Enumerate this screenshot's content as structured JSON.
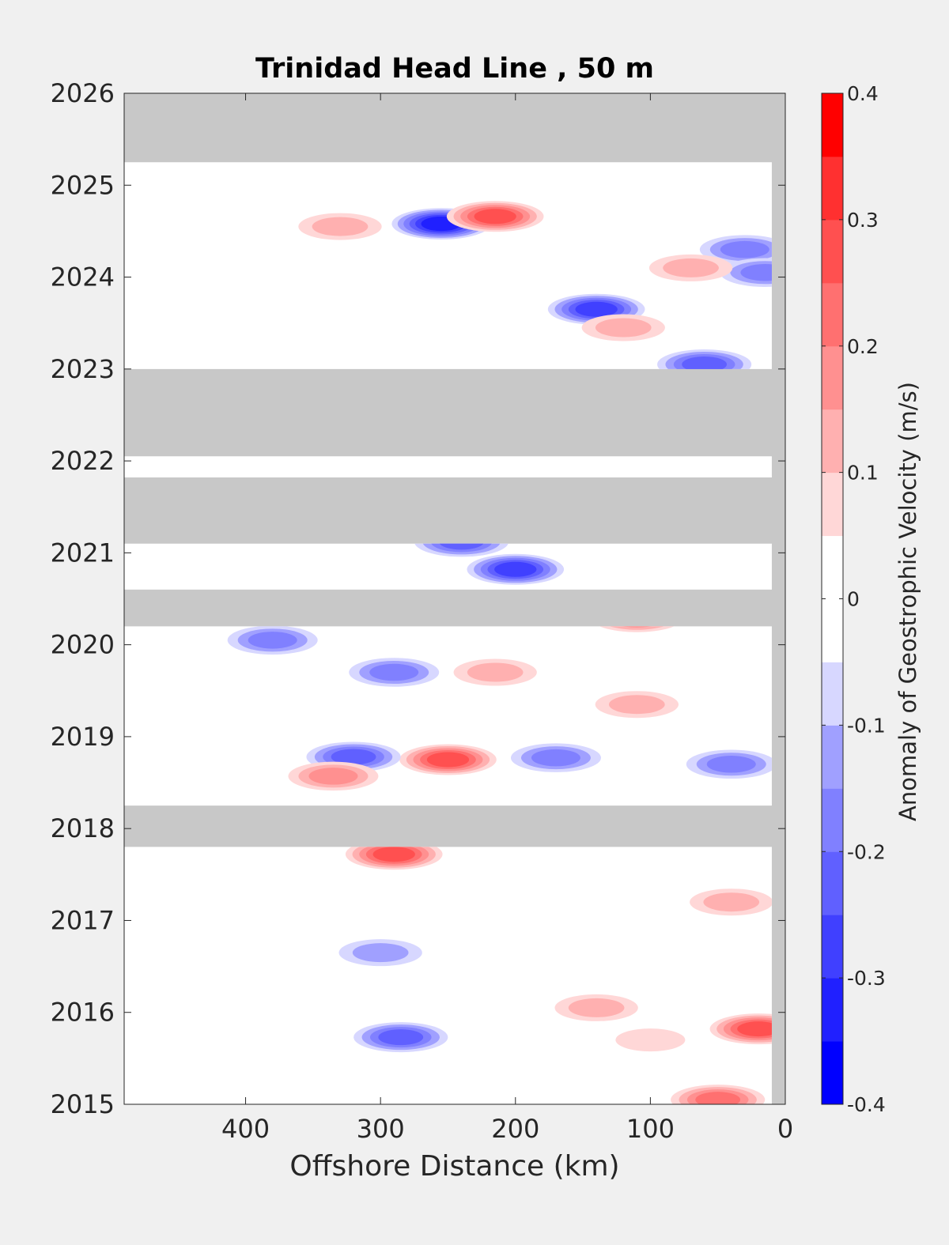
{
  "chart_data": {
    "type": "heatmap",
    "title": "Trinidad Head Line , 50 m",
    "xlabel": "Offshore Distance (km)",
    "ylabel": "",
    "xlim": [
      490,
      0
    ],
    "ylim": [
      2015,
      2026
    ],
    "x_ticks": [
      400,
      300,
      200,
      100,
      0
    ],
    "y_ticks": [
      2015,
      2016,
      2017,
      2018,
      2019,
      2020,
      2021,
      2022,
      2023,
      2024,
      2025,
      2026
    ],
    "colorbar": {
      "label": "Anomaly of Geostrophic Velocity (m/s)",
      "limits": [
        -0.4,
        0.4
      ],
      "ticks": [
        "0.4",
        "0.3",
        "0.2",
        "0.1",
        "0",
        "-0.1",
        "-0.2",
        "-0.3",
        "-0.4"
      ],
      "levels": [
        {
          "from": -0.4,
          "to": -0.35,
          "color": "#0000ff"
        },
        {
          "from": -0.35,
          "to": -0.3,
          "color": "#2020ff"
        },
        {
          "from": -0.3,
          "to": -0.25,
          "color": "#4040ff"
        },
        {
          "from": -0.25,
          "to": -0.2,
          "color": "#6060ff"
        },
        {
          "from": -0.2,
          "to": -0.15,
          "color": "#8080ff"
        },
        {
          "from": -0.15,
          "to": -0.1,
          "color": "#a0a0ff"
        },
        {
          "from": -0.1,
          "to": -0.05,
          "color": "#d7d7ff"
        },
        {
          "from": -0.05,
          "to": 0,
          "color": "#ffffff"
        },
        {
          "from": 0,
          "to": 0.05,
          "color": "#ffffff"
        },
        {
          "from": 0.05,
          "to": 0.1,
          "color": "#ffd7d7"
        },
        {
          "from": 0.1,
          "to": 0.15,
          "color": "#ffb0b0"
        },
        {
          "from": 0.15,
          "to": 0.2,
          "color": "#ff9090"
        },
        {
          "from": 0.2,
          "to": 0.25,
          "color": "#ff7070"
        },
        {
          "from": 0.25,
          "to": 0.3,
          "color": "#ff5050"
        },
        {
          "from": 0.3,
          "to": 0.35,
          "color": "#ff3030"
        },
        {
          "from": 0.35,
          "to": 0.4,
          "color": "#ff0000"
        }
      ]
    },
    "missing_color": "#c8c8c8",
    "grid": false,
    "features": [
      {
        "x": 140,
        "y": 2023.65,
        "value": -0.3
      },
      {
        "x": 200,
        "y": 2020.82,
        "value": -0.3
      },
      {
        "x": 255,
        "y": 2024.58,
        "value": -0.35
      },
      {
        "x": 215,
        "y": 2024.66,
        "value": 0.3
      },
      {
        "x": 250,
        "y": 2018.75,
        "value": 0.3
      },
      {
        "x": 170,
        "y": 2018.77,
        "value": -0.2
      },
      {
        "x": 320,
        "y": 2018.78,
        "value": -0.25
      },
      {
        "x": 335,
        "y": 2018.57,
        "value": 0.2
      },
      {
        "x": 20,
        "y": 2015.82,
        "value": 0.3
      },
      {
        "x": 290,
        "y": 2017.72,
        "value": 0.3
      },
      {
        "x": 285,
        "y": 2015.73,
        "value": -0.25
      },
      {
        "x": 40,
        "y": 2018.7,
        "value": -0.2
      },
      {
        "x": 30,
        "y": 2024.3,
        "value": -0.2
      },
      {
        "x": 15,
        "y": 2024.05,
        "value": -0.2
      },
      {
        "x": 60,
        "y": 2023.05,
        "value": -0.25
      },
      {
        "x": 120,
        "y": 2023.45,
        "value": 0.15
      },
      {
        "x": 110,
        "y": 2020.3,
        "value": 0.25
      },
      {
        "x": 380,
        "y": 2020.05,
        "value": -0.2
      },
      {
        "x": 290,
        "y": 2019.7,
        "value": -0.2
      },
      {
        "x": 215,
        "y": 2019.7,
        "value": 0.15
      },
      {
        "x": 70,
        "y": 2024.1,
        "value": 0.15
      },
      {
        "x": 330,
        "y": 2024.55,
        "value": 0.15
      },
      {
        "x": 240,
        "y": 2021.12,
        "value": -0.25
      },
      {
        "x": 110,
        "y": 2019.35,
        "value": 0.15
      },
      {
        "x": 140,
        "y": 2016.05,
        "value": 0.15
      },
      {
        "x": 40,
        "y": 2017.2,
        "value": 0.15
      },
      {
        "x": 100,
        "y": 2015.7,
        "value": 0.1
      },
      {
        "x": 300,
        "y": 2016.65,
        "value": -0.15
      },
      {
        "x": 50,
        "y": 2015.05,
        "value": 0.25
      }
    ],
    "missing_periods": [
      {
        "y_from": 2025.25,
        "y_to": 2026.0
      },
      {
        "y_from": 2022.05,
        "y_to": 2023.0
      },
      {
        "y_from": 2021.1,
        "y_to": 2021.82
      },
      {
        "y_from": 2020.2,
        "y_to": 2020.6
      },
      {
        "y_from": 2017.8,
        "y_to": 2018.25
      }
    ]
  }
}
